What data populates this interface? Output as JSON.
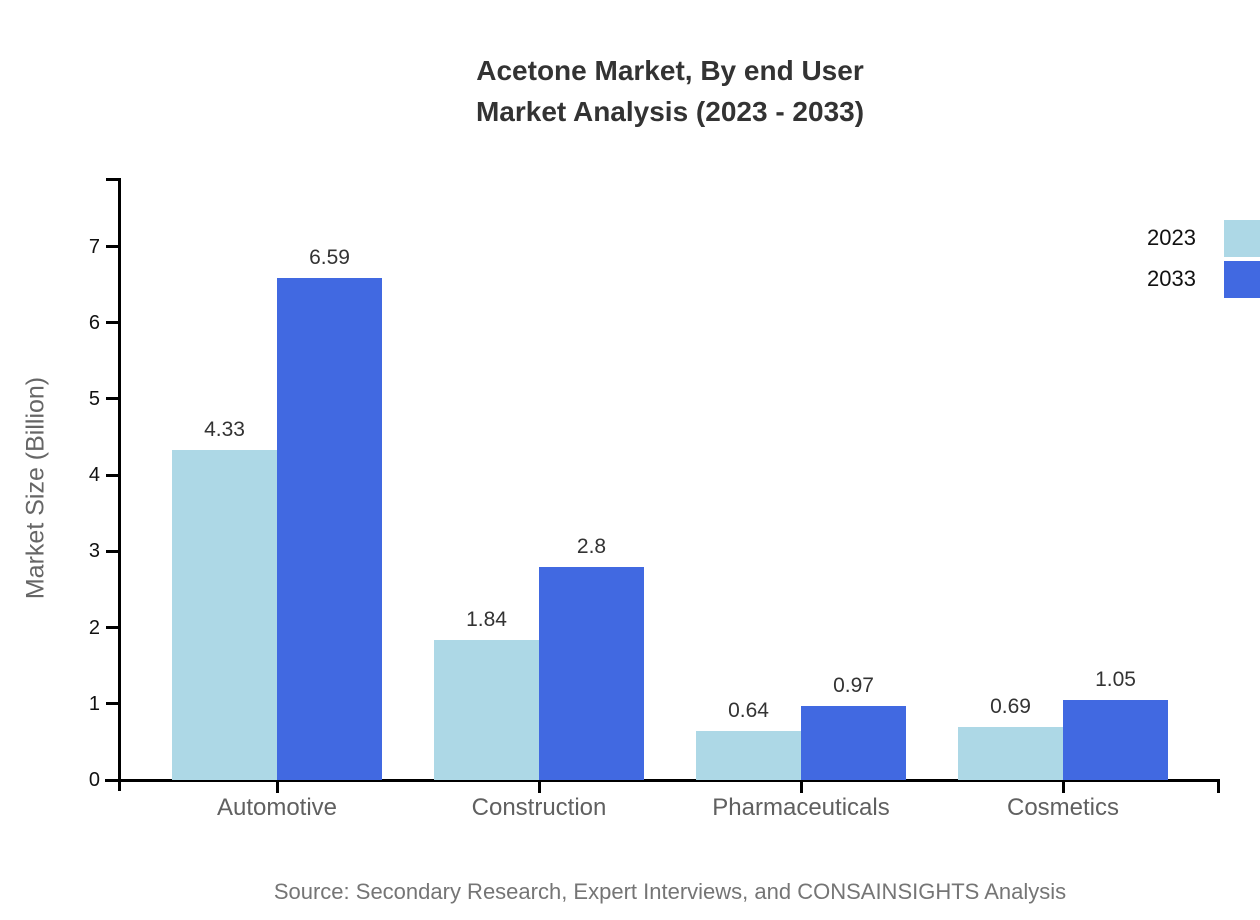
{
  "header": {
    "title": "Acetone Market, By end User\nMarket Analysis (2023 - 2033)"
  },
  "footer": {
    "source": "Source: Secondary Research, Expert Interviews, and CONSAINSIGHTS Analysis"
  },
  "colors": {
    "series_2023": "#ADD8E6",
    "series_2033": "#4169E1",
    "axis": "#000000",
    "title_text": "#333333",
    "category_text": "#606060",
    "source_text": "#757575"
  },
  "chart_data": {
    "type": "bar",
    "title": "Acetone Market, By end User Market Analysis (2023 - 2033)",
    "categories": [
      "Automotive",
      "Construction",
      "Pharmaceuticals",
      "Cosmetics"
    ],
    "series": [
      {
        "name": "2023",
        "color": "#ADD8E6",
        "values": [
          4.33,
          1.84,
          0.64,
          0.69
        ]
      },
      {
        "name": "2033",
        "color": "#4169E1",
        "values": [
          6.59,
          2.8,
          0.97,
          1.05
        ]
      }
    ],
    "xlabel": "",
    "ylabel": "Market Size (Billion)",
    "yticks": [
      0,
      1,
      2,
      3,
      4,
      5,
      6,
      7
    ],
    "ylim": [
      0,
      7.9
    ],
    "grid": false,
    "legend_position": "top-right",
    "legend_entries": [
      "2023",
      "2033"
    ]
  }
}
